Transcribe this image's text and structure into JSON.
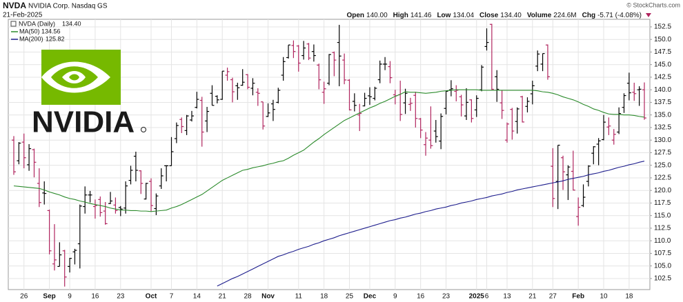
{
  "header": {
    "symbol": "NVDA",
    "name": "NVIDIA Corp. Nasdaq GS",
    "date": "21-Feb-2025",
    "copyright": "© StockCharts.com",
    "quote": [
      {
        "label": "Open",
        "value": "140.00"
      },
      {
        "label": "High",
        "value": "141.46"
      },
      {
        "label": "Low",
        "value": "134.04"
      },
      {
        "label": "Close",
        "value": "134.40"
      },
      {
        "label": "Volume",
        "value": "224.6M"
      },
      {
        "label": "Chg",
        "value": "-5.71 (-4.08%)"
      }
    ]
  },
  "logo": "NVIDIA",
  "chart_data": {
    "type": "ohlc",
    "price_label": "NVDA (Daily)",
    "price_last": "134.40",
    "up_color": "#000000",
    "down_color": "#b0245e",
    "categories": [
      null,
      null,
      "26",
      null,
      null,
      null,
      null,
      "Sep",
      null,
      null,
      null,
      "9",
      null,
      null,
      null,
      null,
      "16",
      null,
      null,
      null,
      null,
      "23",
      null,
      null,
      null,
      null,
      null,
      "Oct",
      null,
      null,
      null,
      "7",
      null,
      null,
      null,
      null,
      "14",
      null,
      null,
      null,
      null,
      "21",
      null,
      null,
      null,
      null,
      "28",
      null,
      null,
      null,
      "Nov",
      null,
      null,
      null,
      null,
      null,
      "11",
      null,
      null,
      null,
      null,
      "18",
      null,
      null,
      null,
      null,
      "25",
      null,
      null,
      null,
      "Dec",
      null,
      null,
      null,
      null,
      "9",
      null,
      null,
      null,
      null,
      "16",
      null,
      null,
      null,
      null,
      "23",
      null,
      null,
      null,
      null,
      null,
      "2025",
      null,
      "6",
      null,
      null,
      null,
      "13",
      null,
      null,
      null,
      null,
      "21",
      null,
      null,
      null,
      "27",
      null,
      null,
      null,
      null,
      "Feb",
      null,
      null,
      null,
      null,
      "10",
      null,
      null,
      null,
      null,
      "18",
      null,
      null,
      null
    ],
    "ohlc": {
      "open": [
        130.0,
        125.9,
        129.6,
        125.1,
        128.1,
        121.4,
        119.5,
        116.0,
        105.4,
        104.9,
        108.0,
        104.9,
        107.8,
        109.4,
        116.8,
        119.1,
        116.8,
        118.2,
        115.9,
        117.4,
        117.1,
        116.6,
        116.5,
        122.0,
        126.8,
        123.9,
        118.3,
        121.8,
        116.4,
        120.9,
        124.9,
        124.9,
        130.3,
        134.1,
        131.9,
        134.0,
        136.5,
        137.9,
        133.8,
        139.3,
        138.7,
        138.1,
        142.9,
        142.0,
        140.8,
        140.9,
        143.0,
        140.3,
        139.5,
        137.6,
        134.7,
        137.2,
        137.5,
        142.9,
        146.4,
        148.8,
        148.7,
        146.8,
        149.1,
        147.6,
        144.9,
        139.5,
        141.3,
        147.4,
        149.4,
        145.9,
        141.9,
        137.7,
        135.0,
        136.8,
        138.8,
        138.3,
        142.0,
        145.1,
        144.6,
        139.0,
        139.0,
        137.4,
        137.1,
        138.9,
        134.2,
        129.1,
        130.0,
        131.8,
        129.8,
        136.3,
        140.0,
        139.7,
        138.6,
        134.8,
        138.0,
        136.0,
        140.0,
        148.6,
        153.0,
        142.6,
        137.4,
        130.0,
        136.1,
        133.7,
        138.6,
        136.7,
        139.2,
        144.7,
        145.1,
        148.9,
        124.8,
        121.8,
        126.5,
        123.1,
        123.8,
        114.8,
        117.0,
        121.8,
        127.4,
        129.2,
        130.1,
        132.6,
        130.0,
        131.6,
        136.5,
        141.3,
        139.5,
        140.0,
        140.0
      ],
      "high": [
        130.8,
        129.6,
        131.3,
        129.2,
        128.3,
        124.4,
        121.8,
        116.2,
        113.3,
        109.7,
        108.2,
        106.6,
        108.4,
        117.2,
        120.8,
        119.9,
        118.2,
        118.8,
        117.7,
        119.7,
        118.6,
        116.9,
        121.8,
        124.9,
        127.7,
        124.0,
        121.5,
        122.4,
        119.4,
        124.4,
        125.0,
        130.6,
        133.5,
        134.5,
        135.0,
        135.8,
        139.6,
        138.6,
        136.6,
        140.9,
        138.9,
        143.7,
        144.4,
        142.4,
        141.4,
        144.1,
        143.1,
        142.3,
        140.3,
        137.6,
        137.3,
        138.0,
        140.4,
        146.5,
        148.9,
        149.8,
        148.9,
        149.7,
        149.3,
        149.0,
        145.2,
        141.6,
        147.1,
        147.6,
        152.9,
        147.2,
        142.1,
        139.3,
        137.2,
        139.4,
        140.5,
        140.6,
        145.8,
        146.5,
        145.7,
        140.0,
        141.8,
        140.2,
        138.4,
        139.6,
        134.4,
        131.6,
        136.7,
        134.0,
        135.3,
        139.8,
        141.9,
        140.9,
        139.0,
        140.3,
        138.1,
        138.9,
        144.9,
        152.2,
        153.1,
        143.9,
        139.9,
        133.5,
        136.4,
        136.5,
        138.8,
        138.5,
        141.8,
        147.8,
        147.2,
        149.0,
        128.4,
        129.0,
        126.9,
        125.0,
        127.9,
        118.6,
        121.2,
        125.0,
        128.8,
        130.4,
        135.0,
        134.5,
        132.2,
        136.5,
        139.3,
        143.4,
        141.4,
        140.7,
        141.46
      ],
      "low": [
        123.1,
        125.2,
        124.4,
        123.9,
        122.6,
        116.7,
        117.2,
        107.3,
        104.1,
        104.9,
        100.9,
        103.7,
        105.3,
        104.5,
        115.4,
        117.6,
        114.4,
        114.8,
        113.2,
        117.3,
        115.4,
        114.9,
        115.4,
        121.2,
        121.8,
        119.3,
        118.2,
        115.8,
        115.1,
        120.3,
        121.8,
        124.9,
        129.4,
        131.4,
        131.0,
        133.7,
        136.3,
        128.7,
        131.6,
        136.9,
        137.3,
        138.0,
        141.8,
        137.5,
        138.0,
        140.8,
        140.1,
        138.9,
        136.8,
        132.1,
        134.6,
        133.8,
        137.3,
        141.8,
        146.2,
        146.3,
        143.6,
        146.0,
        145.9,
        145.6,
        140.1,
        137.2,
        140.9,
        142.7,
        140.7,
        141.1,
        135.9,
        135.7,
        131.8,
        136.7,
        137.0,
        137.9,
        141.3,
        143.9,
        141.3,
        137.1,
        133.8,
        135.2,
        135.8,
        132.5,
        130.4,
        126.9,
        128.3,
        129.5,
        128.2,
        135.1,
        138.7,
        137.7,
        134.7,
        134.0,
        133.5,
        134.6,
        139.7,
        147.8,
        140.0,
        137.6,
        134.2,
        129.5,
        130.1,
        131.3,
        133.5,
        135.5,
        137.1,
        143.7,
        143.7,
        142.0,
        116.7,
        116.3,
        120.1,
        118.1,
        120.0,
        113.0,
        116.7,
        120.8,
        125.2,
        125.0,
        129.96,
        131.0,
        129.1,
        131.2,
        135.4,
        137.9,
        137.8,
        136.8,
        134.04
      ],
      "close": [
        123.7,
        129.4,
        126.5,
        128.3,
        125.6,
        117.6,
        119.4,
        108.0,
        106.2,
        107.2,
        102.8,
        106.5,
        108.1,
        116.9,
        119.1,
        119.1,
        117.0,
        115.6,
        113.4,
        117.9,
        116.0,
        116.3,
        120.9,
        124.0,
        124.0,
        121.4,
        121.4,
        117.0,
        118.9,
        122.9,
        124.9,
        127.7,
        132.9,
        132.7,
        134.8,
        134.8,
        138.1,
        131.6,
        135.7,
        136.9,
        138.0,
        143.7,
        143.6,
        139.6,
        140.4,
        141.5,
        140.5,
        141.3,
        139.3,
        132.8,
        135.4,
        136.1,
        139.9,
        145.6,
        148.9,
        147.6,
        145.3,
        148.3,
        146.3,
        146.8,
        141.98,
        140.2,
        147.0,
        145.9,
        146.7,
        141.95,
        136.0,
        136.9,
        135.3,
        138.3,
        138.6,
        140.3,
        145.1,
        145.1,
        142.4,
        138.8,
        135.1,
        139.3,
        137.3,
        134.3,
        132.0,
        130.4,
        128.9,
        130.7,
        134.7,
        139.7,
        140.2,
        139.9,
        137.0,
        137.5,
        134.3,
        138.3,
        144.5,
        149.4,
        140.1,
        140.1,
        135.9,
        133.2,
        131.8,
        136.2,
        133.6,
        137.7,
        140.8,
        147.1,
        147.2,
        142.6,
        118.4,
        128.99,
        123.7,
        124.65,
        120.07,
        116.66,
        118.65,
        124.83,
        128.68,
        129.84,
        133.57,
        132.8,
        131.14,
        135.29,
        138.85,
        139.4,
        139.23,
        140.11,
        134.4
      ]
    },
    "series": [
      {
        "name": "MA(50)",
        "color": "#2a8a2a",
        "last": "134.56",
        "values": [
          120.9,
          120.8,
          120.7,
          120.6,
          120.5,
          120.4,
          120.1,
          119.7,
          119.4,
          119.1,
          118.7,
          118.4,
          118.2,
          117.9,
          117.7,
          117.4,
          117.2,
          117.0,
          116.8,
          116.5,
          116.3,
          116.1,
          116.1,
          116.0,
          116.0,
          115.9,
          115.9,
          115.8,
          115.9,
          116.0,
          116.1,
          116.5,
          116.8,
          117.2,
          117.7,
          118.2,
          118.7,
          119.2,
          119.9,
          120.6,
          121.3,
          122.0,
          122.5,
          123.0,
          123.5,
          124.0,
          124.2,
          124.5,
          124.7,
          124.9,
          125.2,
          125.4,
          125.7,
          125.9,
          126.4,
          127.0,
          127.5,
          128.0,
          128.8,
          129.6,
          130.3,
          131.1,
          131.8,
          132.5,
          133.2,
          133.9,
          134.4,
          134.9,
          135.4,
          135.9,
          136.4,
          136.8,
          137.3,
          137.7,
          138.2,
          138.7,
          139.1,
          139.6,
          139.5,
          139.5,
          139.4,
          139.3,
          139.4,
          139.5,
          139.7,
          139.8,
          139.9,
          140.0,
          140.0,
          140.0,
          140.0,
          140.0,
          139.9,
          139.9,
          139.9,
          139.9,
          139.9,
          139.9,
          139.9,
          139.9,
          139.9,
          139.9,
          139.9,
          139.8,
          139.6,
          139.5,
          139.3,
          139.0,
          138.6,
          138.3,
          138.0,
          137.6,
          137.1,
          136.7,
          136.2,
          135.9,
          135.5,
          135.2,
          135.1,
          135.1,
          135.0,
          135.0,
          134.9,
          134.7,
          134.56
        ]
      },
      {
        "name": "MA(200)",
        "color": "#1c1c8c",
        "last": "125.82",
        "values": [
          null,
          null,
          null,
          null,
          null,
          null,
          null,
          null,
          null,
          null,
          null,
          null,
          null,
          null,
          null,
          null,
          null,
          null,
          null,
          null,
          null,
          null,
          null,
          null,
          null,
          null,
          null,
          null,
          null,
          null,
          null,
          null,
          null,
          null,
          null,
          null,
          null,
          null,
          null,
          null,
          101.0,
          101.5,
          102.0,
          102.5,
          102.9,
          103.4,
          103.9,
          104.4,
          104.9,
          105.4,
          105.9,
          106.4,
          106.9,
          107.2,
          107.6,
          107.9,
          108.3,
          108.6,
          108.9,
          109.3,
          109.6,
          110.0,
          110.3,
          110.6,
          111.0,
          111.3,
          111.6,
          111.9,
          112.2,
          112.5,
          112.8,
          113.1,
          113.4,
          113.7,
          114.0,
          114.2,
          114.5,
          114.7,
          115.0,
          115.3,
          115.5,
          115.8,
          116.0,
          116.3,
          116.5,
          116.7,
          117.0,
          117.2,
          117.5,
          117.7,
          117.9,
          118.2,
          118.4,
          118.6,
          118.9,
          119.1,
          119.3,
          119.6,
          119.8,
          120.1,
          120.3,
          120.5,
          120.7,
          120.9,
          121.1,
          121.3,
          121.5,
          121.7,
          121.9,
          122.2,
          122.4,
          122.6,
          122.8,
          123.1,
          123.3,
          123.5,
          123.8,
          124.0,
          124.3,
          124.6,
          124.8,
          125.1,
          125.3,
          125.6,
          125.82
        ]
      }
    ],
    "ylim": [
      100.3,
      154.0
    ],
    "yticks": [
      102.5,
      {
        "value": 105,
        "label": "105.0"
      },
      107.5,
      {
        "value": 110,
        "label": "110.0"
      },
      112.5,
      {
        "value": 115,
        "label": "115.0"
      },
      117.5,
      {
        "value": 120,
        "label": "120.0"
      },
      122.5,
      {
        "value": 125,
        "label": "125.0"
      },
      127.5,
      {
        "value": 130,
        "label": "130.0"
      },
      132.5,
      {
        "value": 135,
        "label": "135.0"
      },
      137.5,
      {
        "value": 140,
        "label": "140.0"
      },
      142.5,
      {
        "value": 145,
        "label": "145.0"
      },
      147.5,
      {
        "value": 150,
        "label": "150.0"
      },
      152.5
    ],
    "grid": true
  }
}
